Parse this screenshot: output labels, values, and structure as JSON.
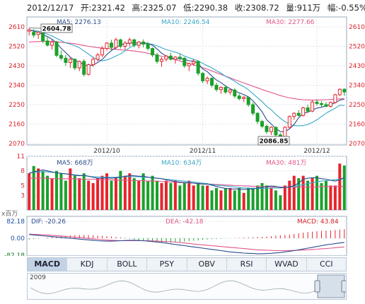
{
  "header": {
    "date": "2012/12/17",
    "open": "开:2321.42",
    "high": "高:2325.07",
    "low": "低:2290.38",
    "close": "收:2308.72",
    "volume": "量:911万",
    "change": "幅:-0.55%"
  },
  "colors": {
    "up": "#e8242c",
    "down": "#1aa12a",
    "ma5": "#2a4b8d",
    "ma10": "#3aa7c8",
    "ma30": "#e0558a"
  },
  "tabs": [
    "MACD",
    "KDJ",
    "BOLL",
    "PSY",
    "OBV",
    "RSI",
    "WVAD",
    "CCI"
  ],
  "active_tab": "MACD",
  "navigator": {
    "year_label": "2009"
  },
  "chart_data": [
    {
      "type": "candlestick",
      "legend": {
        "ma5": "MA5: 2276.13",
        "ma10": "MA10: 2246.54",
        "ma30": "MA30: 2277.66"
      },
      "y_ticks": [
        "2610",
        "2520",
        "2430",
        "2340",
        "2250",
        "2160",
        "2070"
      ],
      "ylim": [
        2070,
        2610
      ],
      "x_ticks": [
        "2012/10",
        "2012/11",
        "2012/12"
      ],
      "x_tick_index": [
        17,
        38,
        63
      ],
      "annotations": {
        "high": "2604.78",
        "low": "2086.85"
      },
      "ohlc": [
        [
          2590,
          2604.78,
          2570,
          2596
        ],
        [
          2585,
          2600,
          2560,
          2572
        ],
        [
          2575,
          2590,
          2555,
          2585
        ],
        [
          2585,
          2595,
          2535,
          2545
        ],
        [
          2545,
          2565,
          2520,
          2525
        ],
        [
          2525,
          2550,
          2505,
          2540
        ],
        [
          2540,
          2545,
          2470,
          2478
        ],
        [
          2478,
          2500,
          2455,
          2465
        ],
        [
          2465,
          2480,
          2430,
          2445
        ],
        [
          2445,
          2470,
          2420,
          2460
        ],
        [
          2460,
          2465,
          2410,
          2420
        ],
        [
          2420,
          2455,
          2405,
          2450
        ],
        [
          2450,
          2460,
          2380,
          2390
        ],
        [
          2390,
          2440,
          2385,
          2435
        ],
        [
          2435,
          2470,
          2425,
          2460
        ],
        [
          2460,
          2490,
          2450,
          2480
        ],
        [
          2480,
          2520,
          2470,
          2510
        ],
        [
          2510,
          2540,
          2500,
          2535
        ],
        [
          2535,
          2550,
          2500,
          2515
        ],
        [
          2515,
          2560,
          2505,
          2550
        ],
        [
          2550,
          2555,
          2510,
          2520
        ],
        [
          2520,
          2545,
          2505,
          2535
        ],
        [
          2535,
          2560,
          2520,
          2550
        ],
        [
          2550,
          2555,
          2515,
          2525
        ],
        [
          2525,
          2545,
          2510,
          2540
        ],
        [
          2540,
          2552,
          2515,
          2530
        ],
        [
          2530,
          2540,
          2500,
          2510
        ],
        [
          2510,
          2515,
          2470,
          2480
        ],
        [
          2480,
          2490,
          2440,
          2450
        ],
        [
          2450,
          2470,
          2425,
          2460
        ],
        [
          2460,
          2480,
          2450,
          2475
        ],
        [
          2475,
          2490,
          2455,
          2460
        ],
        [
          2460,
          2475,
          2440,
          2470
        ],
        [
          2470,
          2485,
          2455,
          2465
        ],
        [
          2465,
          2470,
          2420,
          2430
        ],
        [
          2430,
          2445,
          2405,
          2440
        ],
        [
          2440,
          2460,
          2430,
          2450
        ],
        [
          2450,
          2455,
          2385,
          2395
        ],
        [
          2395,
          2400,
          2350,
          2360
        ],
        [
          2360,
          2380,
          2345,
          2372
        ],
        [
          2372,
          2375,
          2330,
          2340
        ],
        [
          2340,
          2352,
          2310,
          2320
        ],
        [
          2320,
          2335,
          2300,
          2330
        ],
        [
          2330,
          2340,
          2300,
          2308
        ],
        [
          2308,
          2322,
          2295,
          2318
        ],
        [
          2318,
          2325,
          2280,
          2290
        ],
        [
          2290,
          2300,
          2270,
          2278
        ],
        [
          2278,
          2290,
          2262,
          2284
        ],
        [
          2284,
          2286,
          2240,
          2250
        ],
        [
          2250,
          2260,
          2200,
          2210
        ],
        [
          2210,
          2215,
          2160,
          2172
        ],
        [
          2172,
          2180,
          2140,
          2150
        ],
        [
          2150,
          2158,
          2115,
          2125
        ],
        [
          2125,
          2150,
          2110,
          2145
        ],
        [
          2145,
          2150,
          2100,
          2110
        ],
        [
          2110,
          2118,
          2086.85,
          2095
        ],
        [
          2095,
          2150,
          2090,
          2145
        ],
        [
          2145,
          2200,
          2140,
          2195
        ],
        [
          2195,
          2215,
          2180,
          2210
        ],
        [
          2210,
          2225,
          2195,
          2200
        ],
        [
          2200,
          2240,
          2195,
          2235
        ],
        [
          2235,
          2250,
          2215,
          2220
        ],
        [
          2220,
          2270,
          2215,
          2262
        ],
        [
          2262,
          2275,
          2245,
          2255
        ],
        [
          2255,
          2265,
          2240,
          2250
        ],
        [
          2250,
          2262,
          2238,
          2242
        ],
        [
          2242,
          2265,
          2236,
          2260
        ],
        [
          2260,
          2300,
          2255,
          2296
        ],
        [
          2296,
          2325,
          2290,
          2321
        ],
        [
          2321.42,
          2325.07,
          2290.38,
          2308.72
        ]
      ],
      "ma5": [
        2596,
        2590,
        2585,
        2574,
        2565,
        2553,
        2535,
        2511,
        2491,
        2470,
        2454,
        2448,
        2433,
        2430,
        2433,
        2445,
        2459,
        2482,
        2500,
        2514,
        2526,
        2533,
        2534,
        2536,
        2534,
        2536,
        2533,
        2525,
        2508,
        2488,
        2475,
        2466,
        2463,
        2463,
        2460,
        2453,
        2452,
        2441,
        2415,
        2403,
        2382,
        2364,
        2352,
        2336,
        2324,
        2313,
        2305,
        2296,
        2286,
        2268,
        2243,
        2217,
        2180,
        2160,
        2140,
        2125,
        2124,
        2138,
        2158,
        2189,
        2209,
        2215,
        2225,
        2234,
        2238,
        2245,
        2250,
        2259,
        2271,
        2276
      ],
      "ma10": [
        2596,
        2593,
        2590,
        2584,
        2576,
        2568,
        2557,
        2547,
        2536,
        2530,
        2523,
        2513,
        2498,
        2484,
        2469,
        2458,
        2453,
        2457,
        2465,
        2475,
        2485,
        2499,
        2514,
        2524,
        2531,
        2534,
        2533,
        2529,
        2522,
        2513,
        2505,
        2499,
        2493,
        2486,
        2475,
        2467,
        2460,
        2452,
        2441,
        2430,
        2420,
        2407,
        2396,
        2381,
        2371,
        2358,
        2344,
        2333,
        2319,
        2300,
        2282,
        2264,
        2242,
        2226,
        2205,
        2187,
        2171,
        2159,
        2153,
        2152,
        2153,
        2158,
        2168,
        2180,
        2195,
        2210,
        2222,
        2234,
        2247,
        2246
      ],
      "ma30": [
        2540,
        2541,
        2542,
        2543,
        2543,
        2542,
        2541,
        2539,
        2537,
        2534,
        2532,
        2528,
        2524,
        2520,
        2517,
        2514,
        2512,
        2510,
        2508,
        2506,
        2504,
        2502,
        2500,
        2498,
        2495,
        2492,
        2488,
        2484,
        2479,
        2474,
        2469,
        2464,
        2458,
        2452,
        2446,
        2440,
        2434,
        2428,
        2421,
        2414,
        2406,
        2398,
        2390,
        2382,
        2374,
        2366,
        2358,
        2350,
        2343,
        2335,
        2328,
        2320,
        2313,
        2306,
        2299,
        2292,
        2286,
        2281,
        2278,
        2275,
        2273,
        2272,
        2271,
        2271,
        2272,
        2273,
        2274,
        2275,
        2277,
        2277
      ]
    },
    {
      "type": "bar",
      "legend": {
        "ma5": "MA5: 668万",
        "ma10": "MA10: 634万",
        "ma30": "MA30: 481万"
      },
      "y_ticks": [
        "11",
        "8",
        "5",
        "3"
      ],
      "ylim": [
        0,
        11
      ],
      "values": [
        7.5,
        9,
        8.5,
        8,
        7,
        6.5,
        8,
        7.5,
        6,
        8.5,
        7,
        6.5,
        7.5,
        6,
        5.5,
        6.5,
        7,
        7.5,
        6,
        6.5,
        8,
        7,
        7.5,
        6.5,
        6,
        7.5,
        6,
        7,
        6,
        5.5,
        6,
        5.5,
        6,
        5,
        5.5,
        6,
        5,
        5.5,
        5,
        5,
        4,
        4.5,
        4,
        4.5,
        4.5,
        4,
        4.5,
        3.5,
        4.5,
        4.5,
        5,
        5.5,
        5,
        4.5,
        4,
        3,
        5,
        6,
        7,
        6.5,
        7,
        6,
        6.5,
        7,
        5.5,
        6,
        5,
        5,
        9.5,
        9.1
      ],
      "ma5": [
        7.5,
        7.8,
        8,
        8.2,
        8,
        7.8,
        7.6,
        7.5,
        7.4,
        7.3,
        7.1,
        7,
        7.1,
        6.9,
        6.7,
        6.5,
        6.5,
        6.6,
        6.5,
        6.6,
        6.7,
        6.9,
        7,
        7,
        6.9,
        6.9,
        6.7,
        6.6,
        6.5,
        6.4,
        6.2,
        6,
        5.8,
        5.7,
        5.6,
        5.6,
        5.5,
        5.4,
        5.3,
        5.3,
        5.1,
        4.8,
        4.6,
        4.4,
        4.3,
        4.3,
        4.3,
        4.2,
        4.3,
        4.3,
        4.5,
        4.6,
        4.8,
        4.9,
        4.8,
        4.6,
        4.6,
        4.7,
        5,
        5.5,
        6.3,
        6.5,
        6.6,
        6.6,
        6.4,
        6.3,
        6.1,
        5.9,
        6.2,
        6.68
      ],
      "ma10": [
        7.6,
        7.7,
        7.8,
        7.8,
        7.8,
        7.7,
        7.6,
        7.5,
        7.4,
        7.3,
        7.2,
        7.1,
        7,
        6.9,
        6.8,
        6.8,
        6.7,
        6.7,
        6.7,
        6.7,
        6.8,
        6.8,
        6.8,
        6.8,
        6.8,
        6.7,
        6.7,
        6.6,
        6.5,
        6.4,
        6.3,
        6.2,
        6.1,
        6,
        5.9,
        5.8,
        5.7,
        5.6,
        5.5,
        5.4,
        5.2,
        5.1,
        5,
        4.9,
        4.8,
        4.7,
        4.6,
        4.5,
        4.5,
        4.4,
        4.4,
        4.4,
        4.4,
        4.5,
        4.5,
        4.5,
        4.6,
        4.7,
        4.8,
        5,
        5.2,
        5.4,
        5.6,
        5.8,
        5.9,
        6,
        6.1,
        6.2,
        6.3,
        6.34
      ],
      "ma30": [
        6.5,
        6.5,
        6.5,
        6.5,
        6.5,
        6.4,
        6.4,
        6.4,
        6.4,
        6.4,
        6.4,
        6.3,
        6.3,
        6.3,
        6.3,
        6.2,
        6.2,
        6.2,
        6.2,
        6.1,
        6.1,
        6.1,
        6.1,
        6,
        6,
        6,
        5.9,
        5.9,
        5.9,
        5.8,
        5.8,
        5.7,
        5.7,
        5.6,
        5.6,
        5.5,
        5.5,
        5.4,
        5.4,
        5.3,
        5.3,
        5.2,
        5.2,
        5.1,
        5.1,
        5,
        5,
        4.9,
        4.9,
        4.8,
        4.8,
        4.8,
        4.7,
        4.7,
        4.7,
        4.7,
        4.7,
        4.7,
        4.7,
        4.7,
        4.7,
        4.7,
        4.7,
        4.7,
        4.8,
        4.8,
        4.8,
        4.8,
        4.81,
        4.81
      ]
    },
    {
      "type": "line",
      "indicator": "MACD",
      "legend": {
        "dif": "DIF: -20.26",
        "dea": "DEA: -42.18",
        "macd": "MACD: 43.84"
      },
      "y_ticks": [
        "82.18",
        "0.00",
        "-82.18"
      ],
      "ylim": [
        -82.18,
        82.18
      ],
      "macd": [
        -6,
        -4,
        -2,
        0,
        3,
        6,
        8,
        10,
        12,
        14,
        15,
        16,
        16,
        15,
        14,
        13,
        12,
        10,
        8,
        6,
        4,
        2,
        -2,
        -6,
        -10,
        -13,
        -16,
        -18,
        -20,
        -21,
        -22,
        -22,
        -20,
        -18,
        -16,
        -14,
        -12,
        -10,
        -8,
        -6,
        -4,
        -3,
        -2,
        -1,
        0,
        1,
        2,
        3,
        4,
        5,
        6,
        7,
        8,
        10,
        12,
        14,
        16,
        18,
        21,
        24,
        27,
        30,
        32,
        34,
        36,
        37,
        38,
        40,
        42,
        43.84
      ],
      "dif": [
        18,
        16,
        14,
        12,
        10,
        8,
        6,
        4,
        2,
        0,
        -2,
        -4,
        -6,
        -8,
        -10,
        -12,
        -13,
        -14,
        -14,
        -13,
        -12,
        -11,
        -10,
        -10,
        -11,
        -12,
        -14,
        -16,
        -18,
        -21,
        -24,
        -27,
        -30,
        -33,
        -36,
        -39,
        -42,
        -45,
        -48,
        -51,
        -54,
        -57,
        -60,
        -63,
        -66,
        -68,
        -70,
        -72,
        -73,
        -74,
        -75,
        -75,
        -74,
        -73,
        -71,
        -69,
        -66,
        -63,
        -60,
        -56,
        -52,
        -48,
        -44,
        -40,
        -36,
        -32,
        -29,
        -26,
        -23,
        -20.26
      ],
      "dea": [
        20,
        19,
        18,
        17,
        16,
        14,
        13,
        11,
        9,
        7,
        5,
        3,
        1,
        -1,
        -3,
        -5,
        -7,
        -9,
        -10,
        -11,
        -12,
        -12,
        -12,
        -12,
        -12,
        -12,
        -12,
        -13,
        -14,
        -15,
        -16,
        -17,
        -19,
        -21,
        -23,
        -25,
        -28,
        -30,
        -32,
        -34,
        -36,
        -38,
        -40,
        -42,
        -44,
        -46,
        -48,
        -50,
        -52,
        -54,
        -56,
        -57,
        -58,
        -59,
        -60,
        -60,
        -60,
        -60,
        -59,
        -58,
        -57,
        -56,
        -54,
        -53,
        -51,
        -50,
        -48,
        -46,
        -44,
        -42.18
      ]
    }
  ]
}
